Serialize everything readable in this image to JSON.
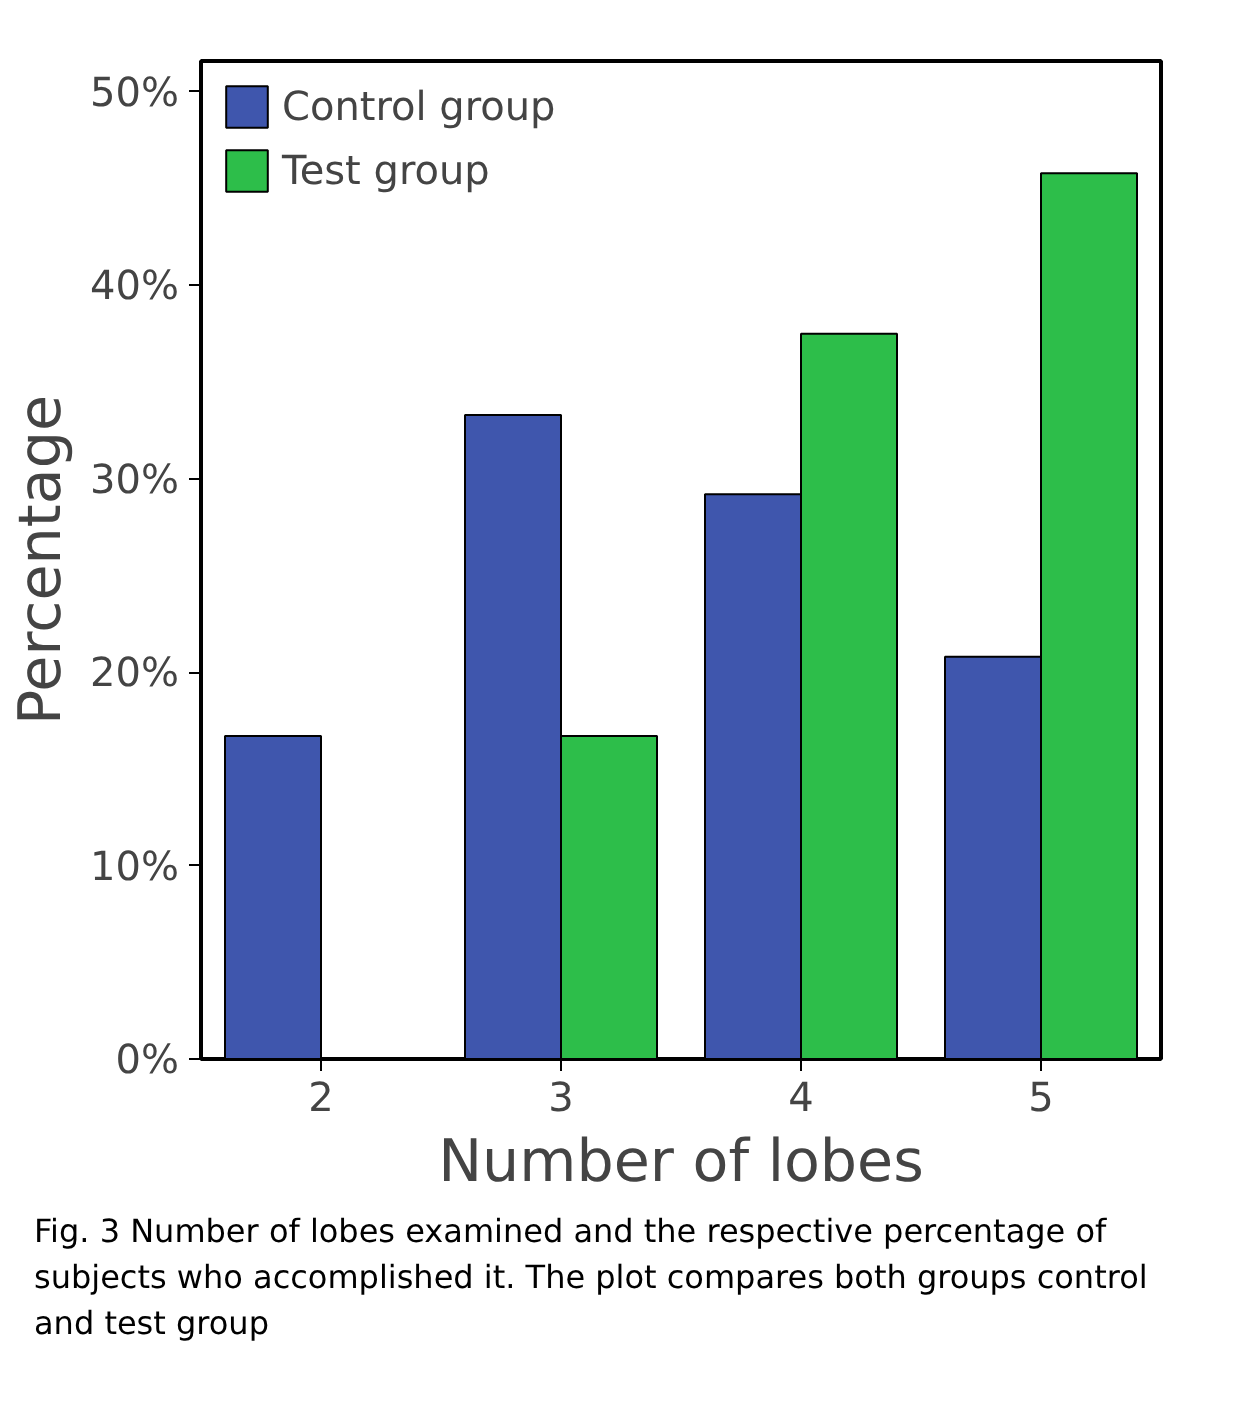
{
  "chart_data": {
    "type": "bar",
    "xlabel": "Number of lobes",
    "ylabel": "Percentage",
    "categories": [
      "2",
      "3",
      "4",
      "5"
    ],
    "series": [
      {
        "name": "Control group",
        "color": "#3f56ad",
        "values": [
          16.7,
          33.3,
          29.2,
          20.8
        ]
      },
      {
        "name": "Test group",
        "color": "#2dbe4a",
        "values": [
          null,
          16.7,
          37.5,
          45.8
        ]
      }
    ],
    "ylim": [
      0,
      51.6
    ],
    "yticks": [
      {
        "value": 0,
        "label": "0%"
      },
      {
        "value": 10,
        "label": "10%"
      },
      {
        "value": 20,
        "label": "20%"
      },
      {
        "value": 30,
        "label": "30%"
      },
      {
        "value": 40,
        "label": "40%"
      },
      {
        "value": 50,
        "label": "50%"
      }
    ],
    "legend": "top left",
    "grid": false,
    "annotations": [
      "Fig. 3 Number of lobes examined and the respective percentage of subjects who accomplished it. The plot compares both groups control and test group"
    ]
  }
}
